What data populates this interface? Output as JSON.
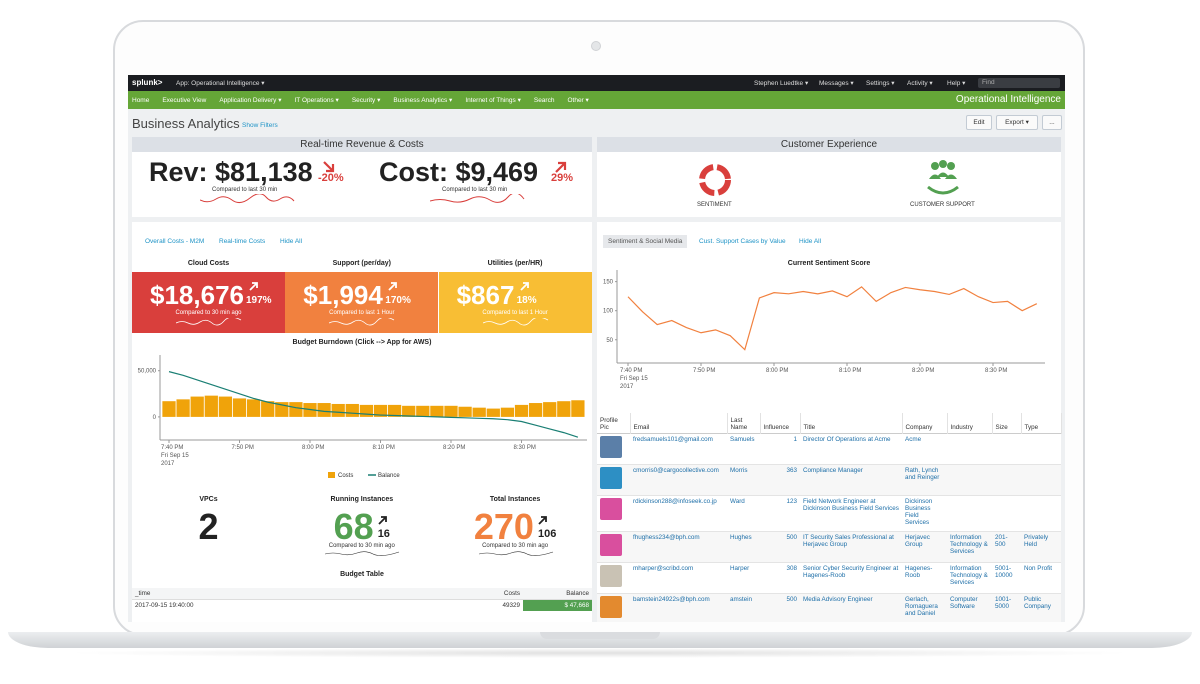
{
  "topbar": {
    "logo": "splunk>",
    "app": "App: Operational Intelligence",
    "menus": [
      "Stephen Luedtke",
      "Messages",
      "Settings",
      "Activity",
      "Help"
    ],
    "search_placeholder": "Find"
  },
  "nav": {
    "items": [
      "Home",
      "Executive View",
      "Application Delivery",
      "IT Operations",
      "Security",
      "Business Analytics",
      "Internet of Things",
      "Search",
      "Other"
    ],
    "app_title": "Operational Intelligence"
  },
  "page": {
    "title": "Business Analytics",
    "filters_link": "Show Filters",
    "buttons": [
      "Edit",
      "Export",
      "..."
    ]
  },
  "revenue_panel": {
    "title": "Real-time Revenue & Costs",
    "rev": {
      "value": "Rev: $81,138",
      "change": "-20%",
      "caption": "Compared to last 30 min"
    },
    "cost": {
      "value": "Cost: $9,469",
      "change": "29%",
      "caption": "Compared to last 30 min"
    }
  },
  "customer_panel": {
    "title": "Customer Experience",
    "icons": [
      "SENTIMENT",
      "CUSTOMER SUPPORT"
    ]
  },
  "costs_panel": {
    "tabs": [
      "Overall Costs - M2M",
      "Real-time Costs",
      "Hide All"
    ],
    "tiles": [
      {
        "title": "Cloud Costs",
        "value": "$18,676",
        "change": "197%",
        "caption": "Compared to 30 min ago",
        "color": "#d93f3c"
      },
      {
        "title": "Support (per/day)",
        "value": "$1,994",
        "change": "170%",
        "caption": "Compared to last 1 Hour",
        "color": "#f1813f"
      },
      {
        "title": "Utilities (per/HR)",
        "value": "$867",
        "change": "18%",
        "caption": "Compared to last 1 Hour",
        "color": "#f8be34"
      }
    ],
    "burndown": {
      "type": "combo",
      "title": "Budget Burndown (Click --> App for AWS)",
      "categories": [
        "7:40 PM",
        null,
        null,
        null,
        null,
        "7:50 PM",
        null,
        null,
        null,
        null,
        "8:00 PM",
        null,
        null,
        null,
        null,
        "8:10 PM",
        null,
        null,
        null,
        null,
        "8:20 PM",
        null,
        null,
        null,
        null,
        "8:30 PM",
        null,
        null,
        null,
        null
      ],
      "date_label": [
        "Fri Sep 15",
        "2017"
      ],
      "series": [
        {
          "name": "Costs",
          "type": "bar",
          "color": "#f0a30a",
          "values": [
            17000,
            19000,
            22000,
            23000,
            22000,
            20000,
            19000,
            17000,
            16000,
            16000,
            15000,
            15000,
            14000,
            14000,
            13000,
            13000,
            13000,
            12000,
            12000,
            12000,
            12000,
            11000,
            10000,
            9000,
            10000,
            13000,
            15000,
            16000,
            17000,
            18000
          ]
        },
        {
          "name": "Balance",
          "type": "line",
          "color": "#1a7f74",
          "values": [
            49000,
            45000,
            40000,
            35000,
            30000,
            25000,
            20000,
            16000,
            13000,
            10000,
            8000,
            6000,
            5000,
            4000,
            3000,
            2000,
            1500,
            1000,
            500,
            0,
            -500,
            -1000,
            -1500,
            -2000,
            -3000,
            -5000,
            -9000,
            -13000,
            -17000,
            -22000
          ]
        }
      ],
      "ylim": [
        -25000,
        67000
      ],
      "yticks": [
        0,
        {
          "value": 50000,
          "label": "50,000"
        }
      ]
    },
    "kpis": [
      {
        "title": "VPCs",
        "value": 2,
        "color": "#222"
      },
      {
        "title": "Running Instances",
        "value": 68,
        "delta": 16,
        "caption": "Compared to 30 min ago",
        "color": "#53a051"
      },
      {
        "title": "Total Instances",
        "value": 270,
        "delta": 106,
        "caption": "Compared to 30 min ago",
        "color": "#f1813f"
      }
    ],
    "table": {
      "title": "Budget Table",
      "columns": [
        "_time",
        "Costs",
        "Balance"
      ],
      "rows": [
        [
          "2017-09-15 19:40:00",
          49329,
          "$ 47,668"
        ]
      ]
    }
  },
  "sentiment_panel": {
    "tabs": [
      "Sentiment & Social Media",
      "Cust. Support Cases by Value",
      "Hide All"
    ],
    "chart": {
      "type": "line",
      "title": "Current Sentiment Score",
      "categories": [
        "7:40 PM",
        null,
        null,
        null,
        null,
        "7:50 PM",
        null,
        null,
        null,
        null,
        "8:00 PM",
        null,
        null,
        null,
        null,
        "8:10 PM",
        null,
        null,
        null,
        null,
        "8:20 PM",
        null,
        null,
        null,
        null,
        "8:30 PM",
        null,
        null,
        null
      ],
      "date_label": [
        "Fri Sep 15",
        "2017"
      ],
      "series": [
        {
          "name": "Sentiment",
          "color": "#f1813f",
          "values": [
            124,
            98,
            76,
            83,
            71,
            62,
            67,
            57,
            33,
            122,
            131,
            129,
            133,
            129,
            134,
            124,
            141,
            116,
            131,
            140,
            136,
            133,
            128,
            138,
            124,
            114,
            116,
            100,
            112
          ]
        }
      ],
      "ylim": [
        10,
        170
      ],
      "yticks": [
        50,
        100,
        150
      ]
    },
    "table": {
      "columns": [
        "Profile Pic",
        "Email",
        "Last Name",
        "Influence",
        "Title",
        "Company",
        "Industry",
        "Size",
        "Type"
      ],
      "rows": [
        {
          "email": "fredsamuels101@gmail.com",
          "last_name": "Samuels",
          "influence": 1,
          "title": "Director Of Operations at Acme",
          "company": "Acme"
        },
        {
          "email": "cmorris0@cargocollective.com",
          "last_name": "Morris",
          "influence": 363,
          "title": "Compliance Manager",
          "company": "Rath, Lynch and Reinger"
        },
        {
          "email": "rdickinson288@infoseek.co.jp",
          "last_name": "Ward",
          "influence": 123,
          "title": "Field Network Engineer at Dickinson Business Field Services",
          "company": "Dickinson Business Field Services"
        },
        {
          "email": "fhughess234@bph.com",
          "last_name": "Hughes",
          "influence": 500,
          "title": "IT Security Sales Professional at Herjavec Group",
          "company": "Herjavec Group",
          "industry": "Information Technology & Services",
          "size": "201-500",
          "type": "Privately Held"
        },
        {
          "email": "mharper@scribd.com",
          "last_name": "Harper",
          "influence": 308,
          "title": "Senior Cyber Security Engineer at Hagenes-Roob",
          "company": "Hagenes-Roob",
          "industry": "Information Technology & Services",
          "size": "5001-10000",
          "type": "Non Profit"
        },
        {
          "email": "bamstein24922s@bph.com",
          "last_name": "amstein",
          "influence": 500,
          "title": "Media Advisory Engineer",
          "company": "Gerlach, Romaguera and Daniel",
          "industry": "Computer Software",
          "size": "1001-5000",
          "type": "Public Company"
        }
      ]
    }
  }
}
